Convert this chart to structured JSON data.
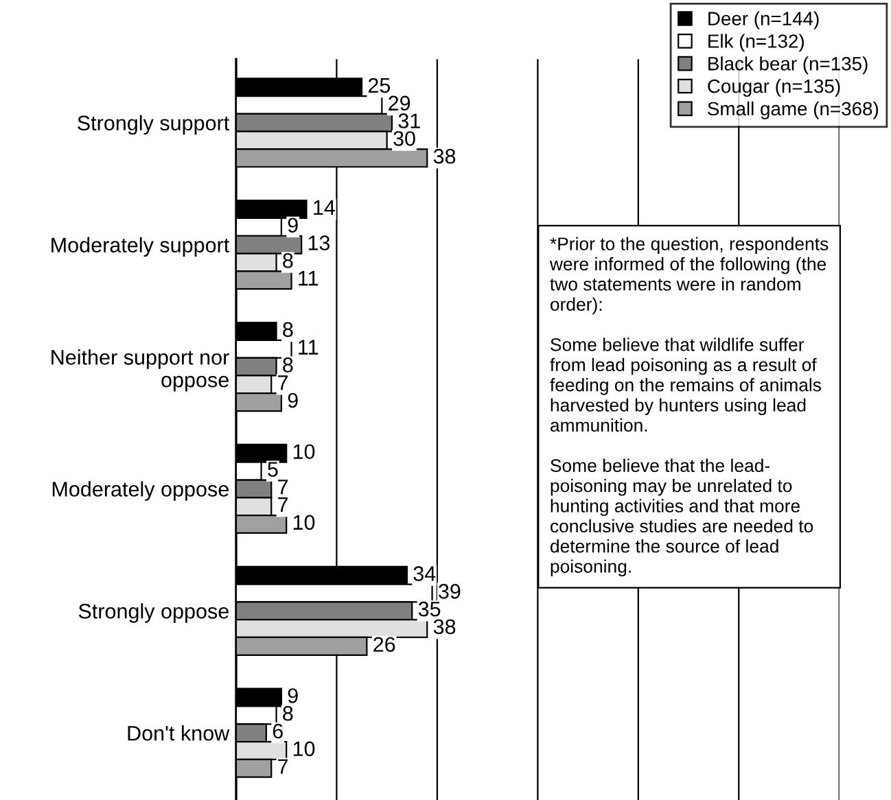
{
  "chart_data": {
    "type": "bar",
    "orientation": "horizontal",
    "categories": [
      "Strongly support",
      "Moderately support",
      "Neither support nor\noppose",
      "Moderately oppose",
      "Strongly oppose",
      "Don't know"
    ],
    "series": [
      {
        "name": "Deer (n=144)",
        "color": "#000000",
        "values": [
          25,
          14,
          8,
          10,
          34,
          9
        ]
      },
      {
        "name": "Elk (n=132)",
        "color": "#ffffff",
        "values": [
          29,
          9,
          11,
          5,
          39,
          8
        ]
      },
      {
        "name": "Black bear (n=135)",
        "color": "#808080",
        "values": [
          31,
          13,
          8,
          7,
          35,
          6
        ]
      },
      {
        "name": "Cougar (n=135)",
        "color": "#e0e0e0",
        "values": [
          30,
          8,
          7,
          7,
          38,
          10
        ]
      },
      {
        "name": "Small game (n=368)",
        "color": "#a0a0a0",
        "values": [
          38,
          11,
          9,
          10,
          26,
          7
        ]
      }
    ],
    "xlim": [
      0,
      120
    ],
    "xticks": [
      {
        "value": 0,
        "label": null
      },
      {
        "value": 20,
        "label": null
      },
      {
        "value": 40,
        "label": null
      },
      {
        "value": 60,
        "label": null
      },
      {
        "value": 80,
        "label": null
      },
      {
        "value": 100,
        "label": null
      },
      {
        "value": 120,
        "label": null
      }
    ],
    "grid": "x",
    "tick_labels": "y",
    "data_labels": true,
    "legend": "top right",
    "annotations": [
      "*Prior to the question, respondents\nwere informed of the following (the\ntwo statements were in random\norder):\n\nSome believe that wildlife suffer\nfrom lead poisoning as a result of\nfeeding on the remains of animals\nharvested by hunters using lead\nammunition.\n\nSome believe that the lead-\npoisoning may be unrelated to\nhunting activities and that more\nconclusive studies are needed to\ndetermine the source of lead\npoisoning."
    ]
  }
}
